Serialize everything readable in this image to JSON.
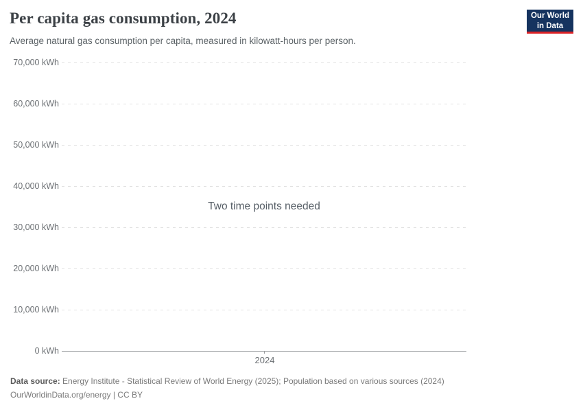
{
  "header": {
    "title": "Per capita gas consumption, 2024",
    "subtitle": "Average natural gas consumption per capita, measured in kilowatt-hours per person."
  },
  "logo": {
    "line1": "Our World",
    "line2": "in Data",
    "bg_color": "#15335f",
    "accent_color": "#dc2227"
  },
  "chart_data": {
    "type": "line",
    "title": "Per capita gas consumption, 2024",
    "subtitle": "Average natural gas consumption per capita, measured in kilowatt-hours per person.",
    "unit": "kWh",
    "series": [],
    "empty_state_message": "Two time points needed",
    "x_ticks": [
      "2024"
    ],
    "y_ticks": [
      "0 kWh",
      "10,000 kWh",
      "20,000 kWh",
      "30,000 kWh",
      "40,000 kWh",
      "50,000 kWh",
      "60,000 kWh",
      "70,000 kWh"
    ],
    "ylim": [
      0,
      70000
    ],
    "xlabel": "",
    "ylabel": "",
    "grid": true,
    "grid_style": "dashed",
    "legend_position": "none"
  },
  "footer": {
    "source_label": "Data source:",
    "source_text": "Energy Institute - Statistical Review of World Energy (2025); Population based on various sources (2024)",
    "credit": "OurWorldinData.org/energy | CC BY"
  },
  "colors": {
    "title_text": "#3b4045",
    "subtitle_text": "#5b6266",
    "tick_text": "#6b6f73",
    "gridline": "#e1e1e1",
    "axis_line": "#999b9e",
    "footer_text": "#7a7a7a"
  }
}
